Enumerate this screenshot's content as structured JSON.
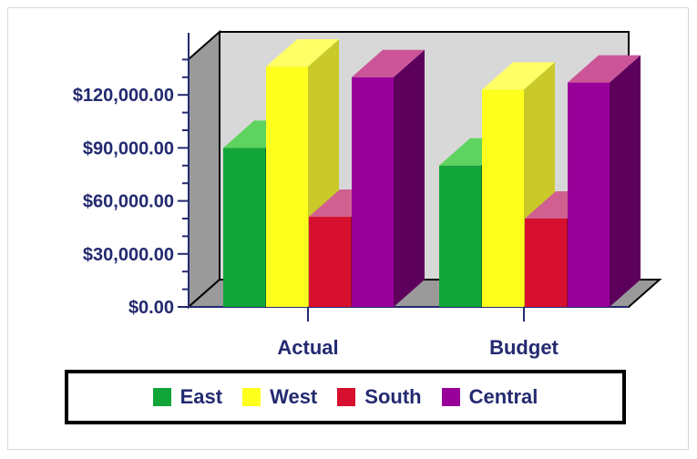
{
  "chart_data": {
    "type": "bar",
    "style": "3d-clustered",
    "categories": [
      "Actual",
      "Budget"
    ],
    "series": [
      {
        "name": "East",
        "values": [
          90000,
          80000
        ],
        "color": "#12a53a",
        "top_color": "#5fd35f",
        "side_color": "#0a7a28"
      },
      {
        "name": "West",
        "values": [
          136000,
          123000
        ],
        "color": "#ffff1e",
        "top_color": "#ffff66",
        "side_color": "#c9c92a"
      },
      {
        "name": "South",
        "values": [
          51000,
          50000
        ],
        "color": "#d6102e",
        "top_color": "#cf6090",
        "side_color": "#950a22"
      },
      {
        "name": "Central",
        "values": [
          130000,
          127000
        ],
        "color": "#990099",
        "top_color": "#cc5599",
        "side_color": "#5c005c"
      }
    ],
    "y_ticks": [
      {
        "value": 0,
        "label": "$0.00"
      },
      {
        "value": 30000,
        "label": "$30,000.00"
      },
      {
        "value": 60000,
        "label": "$60,000.00"
      },
      {
        "value": 90000,
        "label": "$90,000.00"
      },
      {
        "value": 120000,
        "label": "$120,000.00"
      }
    ],
    "ylim": [
      0,
      150000
    ],
    "title": "",
    "xlabel": "",
    "ylabel": "",
    "grid": false,
    "legend_position": "bottom",
    "colors": {
      "back_wall": "#d8d8d8",
      "side_wall": "#9a9a9a",
      "floor": "#9a9a9a",
      "axis_text": "#232a70",
      "outline": "#000000"
    }
  }
}
